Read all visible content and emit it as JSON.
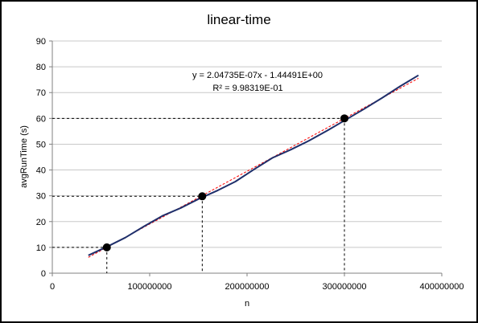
{
  "chart_data": {
    "type": "line",
    "title": "linear-time",
    "xlabel": "n",
    "ylabel": "avgRunTime  (s)",
    "xlim": [
      0,
      400000000
    ],
    "ylim": [
      0,
      90
    ],
    "x_ticks": [
      0,
      100000000,
      200000000,
      300000000,
      400000000
    ],
    "x_tick_labels": [
      "0",
      "100000000",
      "200000000",
      "300000000",
      "400000000"
    ],
    "y_ticks": [
      0,
      10,
      20,
      30,
      40,
      50,
      60,
      70,
      80,
      90
    ],
    "y_tick_labels": [
      "0",
      "10",
      "20",
      "30",
      "40",
      "50",
      "60",
      "70",
      "80",
      "90"
    ],
    "grid": "horizontal",
    "series": [
      {
        "color": "#1f2f6b",
        "x": [
          37000000,
          56000000,
          75000000,
          94000000,
          113000000,
          132000000,
          151000000,
          170000000,
          188000000,
          207000000,
          226000000,
          245000000,
          264000000,
          283000000,
          301000000,
          320000000,
          339000000,
          357000000,
          376000000
        ],
        "y": [
          6.9,
          10.2,
          13.8,
          18.1,
          22.2,
          25.3,
          28.9,
          32.1,
          35.5,
          40.2,
          44.7,
          47.9,
          51.4,
          55.4,
          59.4,
          63.6,
          68.0,
          72.4,
          76.7
        ]
      }
    ],
    "trendline": {
      "color": "#ff0000",
      "slope": 2.04735e-07,
      "intercept": -1.44491,
      "x_range": [
        37000000,
        376000000
      ],
      "equation_text": "y = 2.04735E-07x - 1.44491E+00",
      "r2_text": "R² = 9.98319E-01"
    },
    "highlight_points": [
      {
        "x": 56000000,
        "y": 10
      },
      {
        "x": 154000000,
        "y": 29.8
      },
      {
        "x": 300000000,
        "y": 60
      }
    ]
  }
}
